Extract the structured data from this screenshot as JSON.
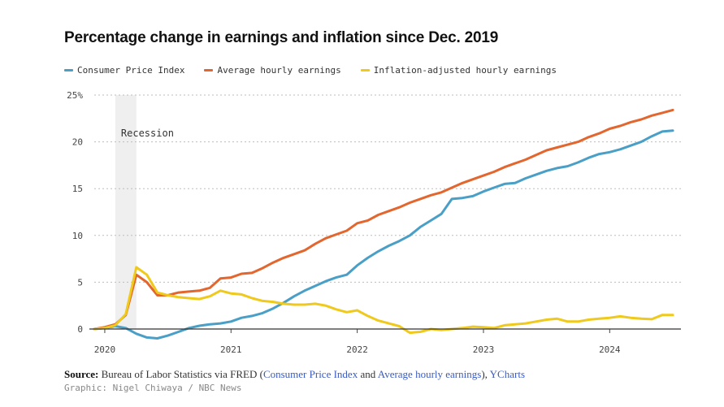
{
  "chart_data": {
    "type": "line",
    "title": "Percentage change in earnings and inflation since Dec. 2019",
    "ylabel": "",
    "xlabel": "",
    "ylim": [
      -1.5,
      25
    ],
    "yticks": [
      0,
      5,
      10,
      15,
      20,
      25
    ],
    "ytick_labels": [
      "0",
      "5",
      "10",
      "15",
      "20",
      "25%"
    ],
    "xticks": [
      {
        "label": "2020",
        "month_index": 1
      },
      {
        "label": "2021",
        "month_index": 13
      },
      {
        "label": "2022",
        "month_index": 25
      },
      {
        "label": "2023",
        "month_index": 37
      },
      {
        "label": "2024",
        "month_index": 49
      }
    ],
    "xlim": [
      0,
      55
    ],
    "shade": {
      "label": "Recession",
      "from": 2,
      "to": 4
    },
    "series": [
      {
        "name": "Consumer Price Index",
        "color": "#4a9fc7",
        "values": [
          0,
          0.1,
          0.3,
          0.1,
          -0.5,
          -0.9,
          -1.0,
          -0.7,
          -0.3,
          0.1,
          0.35,
          0.5,
          0.6,
          0.8,
          1.2,
          1.4,
          1.7,
          2.2,
          2.8,
          3.5,
          4.1,
          4.6,
          5.1,
          5.5,
          5.8,
          6.8,
          7.6,
          8.3,
          8.9,
          9.4,
          10.0,
          10.9,
          11.6,
          12.3,
          13.9,
          14.0,
          14.2,
          14.7,
          15.1,
          15.5,
          15.6,
          16.1,
          16.5,
          16.9,
          17.2,
          17.4,
          17.8,
          18.3,
          18.7,
          18.9,
          19.2,
          19.6,
          20.0,
          20.6,
          21.1,
          21.2
        ]
      },
      {
        "name": "Average hourly earnings",
        "color": "#e2662e",
        "values": [
          0,
          0.2,
          0.5,
          1.5,
          5.8,
          5.0,
          3.6,
          3.6,
          3.9,
          4.0,
          4.1,
          4.4,
          5.4,
          5.5,
          5.9,
          6.0,
          6.5,
          7.1,
          7.6,
          8.0,
          8.4,
          9.1,
          9.7,
          10.1,
          10.5,
          11.3,
          11.6,
          12.2,
          12.6,
          13.0,
          13.5,
          13.9,
          14.3,
          14.6,
          15.1,
          15.6,
          16.0,
          16.4,
          16.8,
          17.3,
          17.7,
          18.1,
          18.6,
          19.1,
          19.4,
          19.7,
          20.0,
          20.5,
          20.9,
          21.4,
          21.7,
          22.1,
          22.4,
          22.8,
          23.1,
          23.4
        ]
      },
      {
        "name": "Inflation-adjusted hourly earnings",
        "color": "#efc91c",
        "values": [
          0,
          0.1,
          0.4,
          1.6,
          6.6,
          5.8,
          3.9,
          3.6,
          3.4,
          3.3,
          3.2,
          3.5,
          4.1,
          3.8,
          3.7,
          3.3,
          3.0,
          2.9,
          2.7,
          2.6,
          2.6,
          2.7,
          2.5,
          2.1,
          1.8,
          2.0,
          1.4,
          0.9,
          0.6,
          0.3,
          -0.4,
          -0.3,
          0.0,
          -0.1,
          0.0,
          0.1,
          0.25,
          0.2,
          0.1,
          0.4,
          0.5,
          0.6,
          0.8,
          1.0,
          1.1,
          0.8,
          0.8,
          1.0,
          1.1,
          1.2,
          1.35,
          1.2,
          1.1,
          1.05,
          1.5,
          1.5
        ]
      }
    ]
  },
  "source": {
    "label": "Source:",
    "text_before": "Bureau of Labor Statistics via FRED (",
    "link1": "Consumer Price Index",
    "text_and": " and ",
    "link2": "Average hourly earnings",
    "text_close": "), ",
    "link3": "YCharts"
  },
  "credit": "Graphic: Nigel Chiwaya / NBC News"
}
